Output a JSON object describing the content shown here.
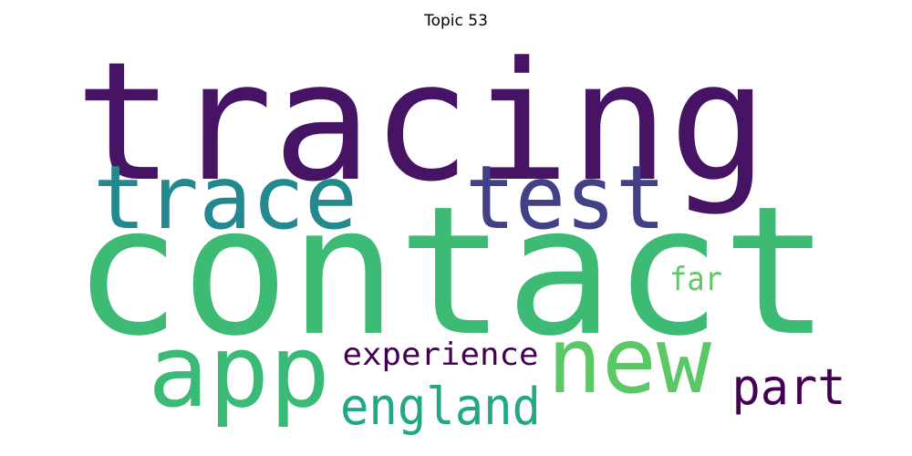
{
  "chart_data": {
    "type": "wordcloud",
    "title": "Topic 53",
    "words": [
      {
        "text": "tracing",
        "weight": 1.0,
        "color": "#471365"
      },
      {
        "text": "contact",
        "weight": 0.95,
        "color": "#3dbb74"
      },
      {
        "text": "trace",
        "weight": 0.55,
        "color": "#23898e"
      },
      {
        "text": "test",
        "weight": 0.55,
        "color": "#424086"
      },
      {
        "text": "app",
        "weight": 0.55,
        "color": "#3aba76"
      },
      {
        "text": "new",
        "weight": 0.5,
        "color": "#5ac864"
      },
      {
        "text": "england",
        "weight": 0.35,
        "color": "#22a884"
      },
      {
        "text": "part",
        "weight": 0.3,
        "color": "#440154"
      },
      {
        "text": "experience",
        "weight": 0.25,
        "color": "#440154"
      },
      {
        "text": "far",
        "weight": 0.2,
        "color": "#5ec962"
      }
    ]
  }
}
